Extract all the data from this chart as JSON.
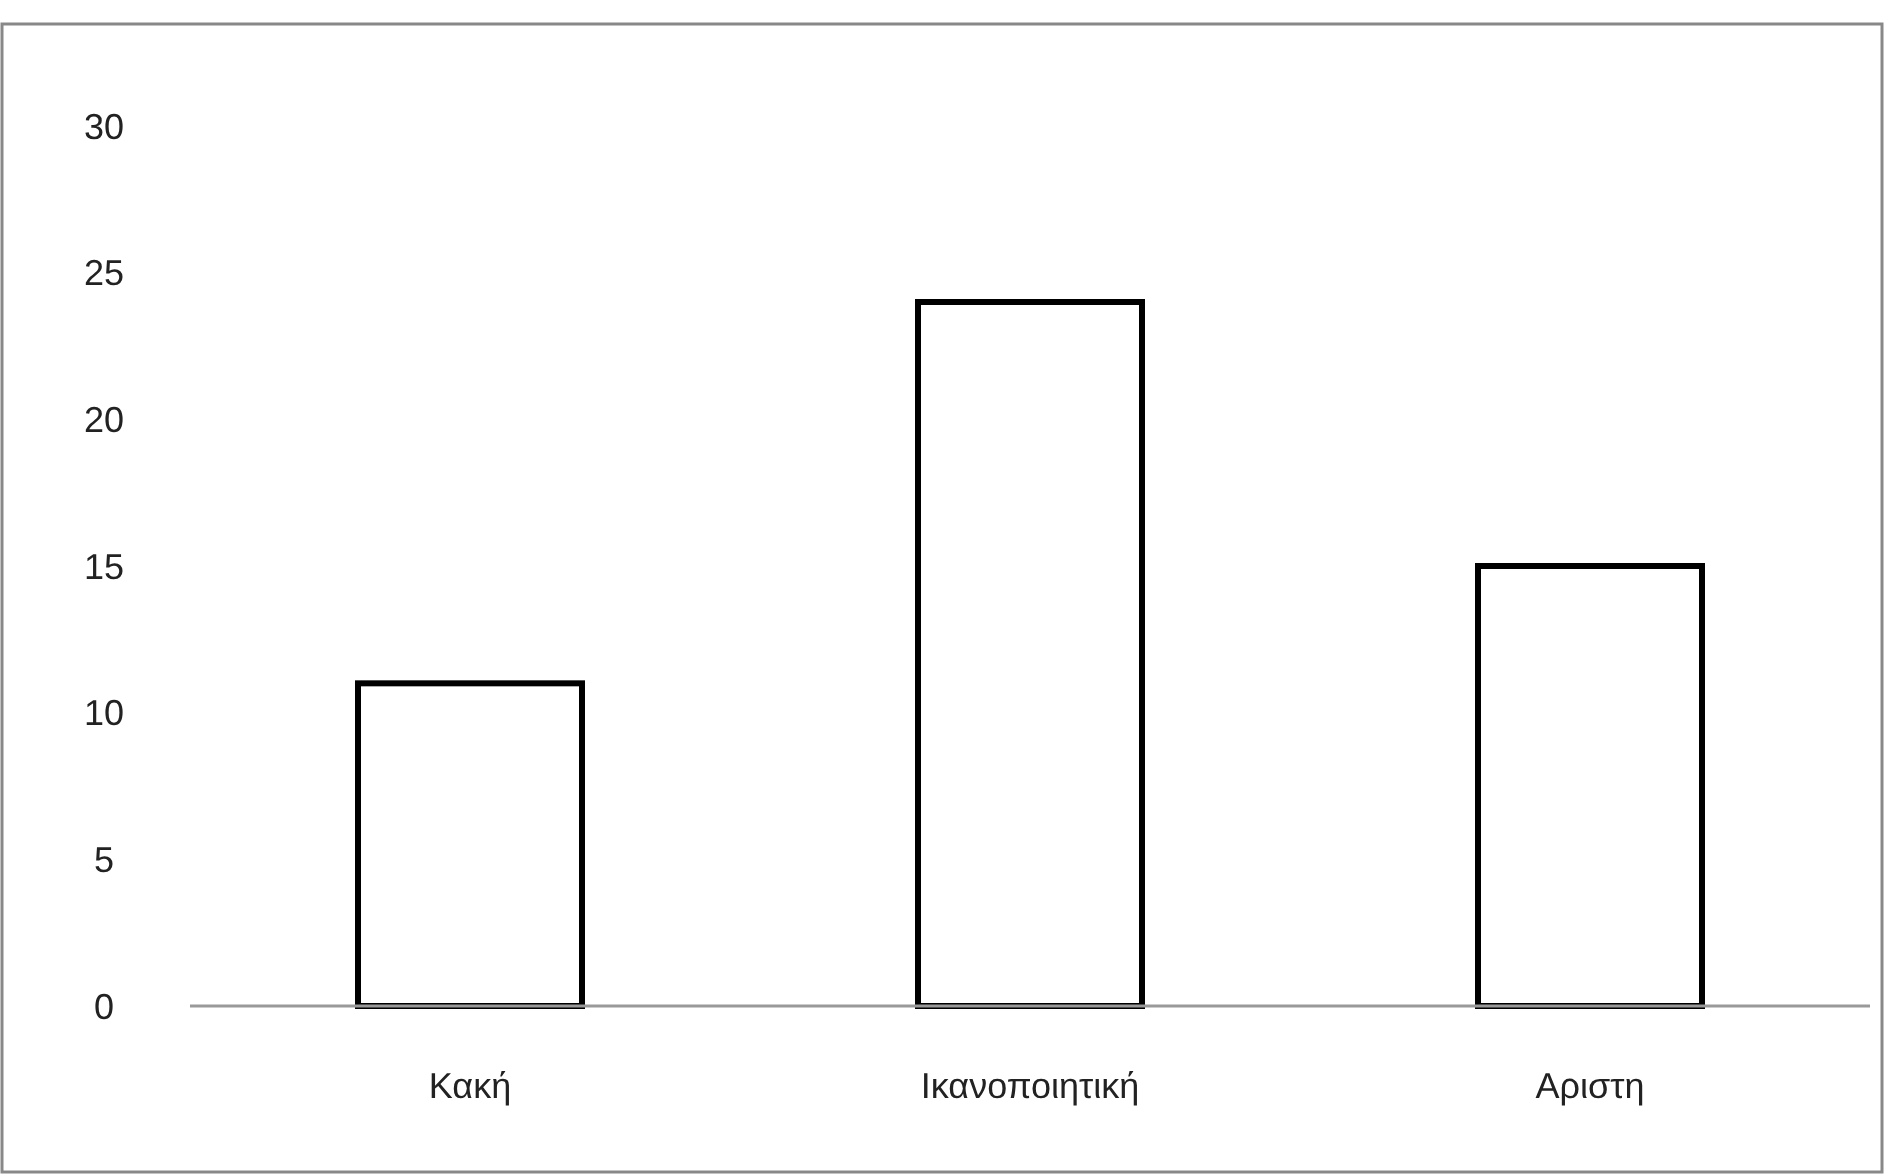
{
  "chart_data": {
    "type": "bar",
    "categories": [
      "Κακή",
      "Ικανοποιητική",
      "Αριστη"
    ],
    "values": [
      11,
      24,
      15
    ],
    "color": "#ffffff",
    "ylim": [
      0,
      30
    ],
    "yticks": [
      0,
      5,
      10,
      15,
      20,
      25,
      30
    ]
  }
}
